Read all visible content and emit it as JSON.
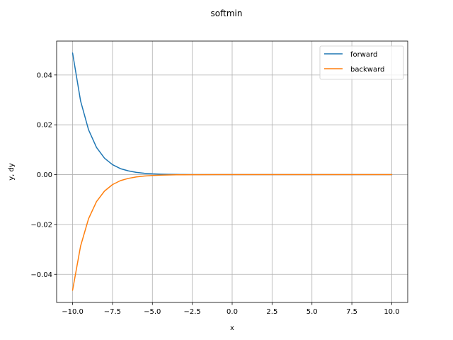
{
  "chart_data": {
    "type": "line",
    "title": "softmin",
    "xlabel": "x",
    "ylabel": "y, dy",
    "xlim": [
      -11.0,
      11.0
    ],
    "ylim": [
      -0.0513,
      0.0536
    ],
    "xticks": [
      -10.0,
      -7.5,
      -5.0,
      -2.5,
      0.0,
      2.5,
      5.0,
      7.5,
      10.0
    ],
    "xtick_labels": [
      "−10.0",
      "−7.5",
      "−5.0",
      "−2.5",
      "0.0",
      "2.5",
      "5.0",
      "7.5",
      "10.0"
    ],
    "yticks": [
      -0.04,
      -0.02,
      0.0,
      0.02,
      0.04
    ],
    "ytick_labels": [
      "−0.04",
      "−0.02",
      "0.00",
      "0.02",
      "0.04"
    ],
    "grid": true,
    "legend_position": "top-right",
    "series": [
      {
        "name": "forward",
        "color": "#1f77b4",
        "x": [
          -10.0,
          -9.5,
          -9.0,
          -8.5,
          -8.0,
          -7.5,
          -7.0,
          -6.5,
          -6.0,
          -5.5,
          -5.0,
          -4.5,
          -4.0,
          -3.5,
          -3.0,
          -2.5,
          -2.0,
          -1.0,
          0.0,
          2.5,
          5.0,
          7.5,
          10.0
        ],
        "y": [
          0.0488,
          0.0296,
          0.018,
          0.0109,
          0.0066,
          0.004,
          0.0024,
          0.0015,
          0.0009,
          0.00055,
          0.00033,
          0.0002,
          0.00012,
          7e-05,
          4e-05,
          3e-05,
          2e-05,
          0.0,
          0.0,
          0.0,
          0.0,
          0.0,
          0.0
        ]
      },
      {
        "name": "backward",
        "color": "#ff7f0e",
        "x": [
          -10.0,
          -9.5,
          -9.0,
          -8.5,
          -8.0,
          -7.5,
          -7.0,
          -6.5,
          -6.0,
          -5.5,
          -5.0,
          -4.5,
          -4.0,
          -3.5,
          -3.0,
          -2.5,
          -2.0,
          -1.0,
          0.0,
          2.5,
          5.0,
          7.5,
          10.0
        ],
        "y": [
          -0.0464,
          -0.0287,
          -0.0177,
          -0.0108,
          -0.0066,
          -0.004,
          -0.0024,
          -0.0015,
          -0.0009,
          -0.00055,
          -0.00033,
          -0.0002,
          -0.00012,
          -7e-05,
          -4e-05,
          -3e-05,
          -2e-05,
          0.0,
          0.0,
          0.0,
          0.0,
          0.0,
          0.0
        ]
      }
    ]
  }
}
